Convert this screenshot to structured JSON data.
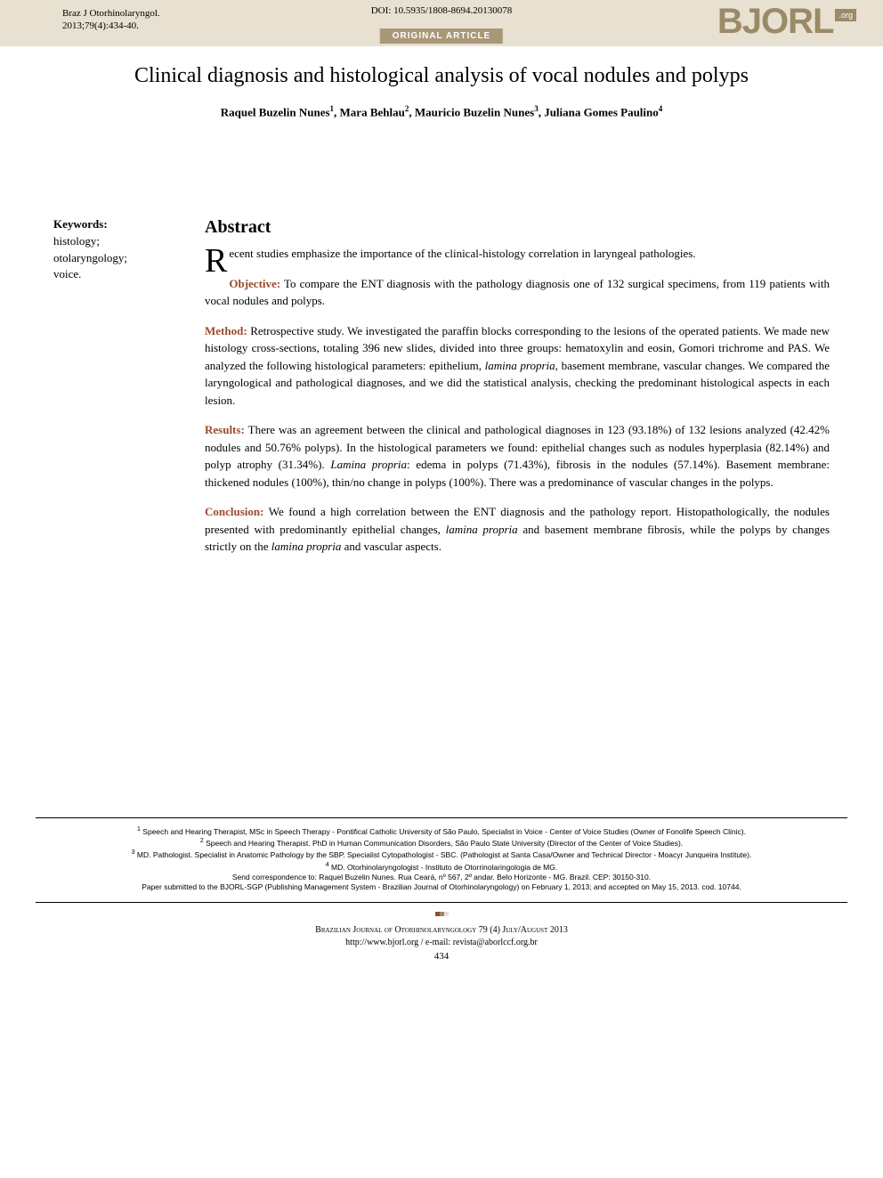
{
  "header": {
    "journal_ref_line1": "Braz J Otorhinolaryngol.",
    "journal_ref_line2": "2013;79(4):434-40.",
    "doi": "DOI: 10.5935/1808-8694.20130078",
    "article_type": "ORIGINAL ARTICLE",
    "logo_text": "BJORL",
    "logo_suffix": ".org"
  },
  "title": "Clinical diagnosis and histological analysis of vocal nodules and polyps",
  "authors": {
    "a1": "Raquel Buzelin Nunes",
    "s1": "1",
    "a2": "Mara Behlau",
    "s2": "2",
    "a3": "Mauricio Buzelin Nunes",
    "s3": "3",
    "a4": "Juliana Gomes Paulino",
    "s4": "4"
  },
  "keywords": {
    "heading": "Keywords:",
    "k1": "histology;",
    "k2": "otolaryngology;",
    "k3": "voice."
  },
  "abstract": {
    "heading": "Abstract",
    "intro_dropcap": "R",
    "intro_rest": "ecent studies emphasize the importance of the clinical-histology correlation in laryngeal pathologies.",
    "objective_label": "Objective:",
    "objective_text": " To compare the ENT diagnosis with the pathology diagnosis one of 132 surgical specimens, from 119 patients with vocal nodules and polyps.",
    "method_label": "Method:",
    "method_text_a": " Retrospective study. We investigated the paraffin blocks corresponding to the lesions of the operated patients. We made new histology cross-sections, totaling 396 new slides, divided into three groups: hematoxylin and eosin, Gomori trichrome and PAS. We analyzed the following histological parameters: epithelium, ",
    "method_italic": "lamina propria",
    "method_text_b": ", basement membrane, vascular changes. We compared the laryngological and pathological diagnoses, and we did the statistical analysis, checking the predominant histological aspects in each lesion.",
    "results_label": "Results:",
    "results_text_a": " There was an agreement between the clinical and pathological diagnoses in 123 (93.18%) of 132 lesions analyzed (42.42% nodules and 50.76% polyps). In the histological parameters we found: epithelial changes such as nodules hyperplasia (82.14%) and polyp atrophy (31.34%). ",
    "results_italic1": "Lamina propria",
    "results_text_b": ": edema in polyps (71.43%), fibrosis in the nodules (57.14%). Basement membrane: thickened nodules (100%), thin/no change in polyps (100%). There was a predominance of vascular changes in the polyps.",
    "conclusion_label": "Conclusion:",
    "conclusion_text_a": " We found a high correlation between the ENT diagnosis and the pathology report. Histopathologically, the nodules presented with predominantly epithelial changes, ",
    "conclusion_italic1": "lamina propria",
    "conclusion_text_b": " and basement membrane fibrosis, while the polyps by changes strictly on the ",
    "conclusion_italic2": "lamina propria",
    "conclusion_text_c": " and vascular aspects."
  },
  "affiliations": {
    "a1": " Speech and Hearing Therapist, MSc in Speech Therapy - Pontifical Catholic University of São Paulo, Specialist in Voice - Center of Voice Studies (Owner of Fonolife Speech Clinic).",
    "a2": " Speech and Hearing Therapist. PhD in Human Communication Disorders, São Paulo State University (Director of the Center of Voice Studies).",
    "a3": " MD. Pathologist. Specialist in Anatomic Pathology by the SBP. Specialist Cytopathologist - SBC. (Pathologist at Santa Casa/Owner and Technical Director - Moacyr Junqueira Institute).",
    "a4": " MD. Otorhinolaryngologist - Instituto de Otorrinolaringologia de MG.",
    "correspondence": "Send correspondence to: Raquel Buzelin Nunes. Rua Ceará, nº 567, 2º andar. Belo Horizonte - MG. Brazil. CEP: 30150-310.",
    "submission": "Paper submitted to the BJORL-SGP (Publishing Management System - Brazilian Journal of Otorhinolaryngology) on February 1, 2013; and accepted on May 15, 2013. cod. 10744."
  },
  "footer": {
    "journal_line": "Brazilian Journal of Otorhinolaryngology 79 (4) July/August 2013",
    "contact_line": "http://www.bjorl.org  /  e-mail: revista@aborlccf.org.br",
    "page_number": "434"
  },
  "colors": {
    "band_bg": "#e8e0d0",
    "brand": "#9a8a68",
    "accent_brown": "#9a4a2a",
    "article_type_bg": "#a89878"
  }
}
